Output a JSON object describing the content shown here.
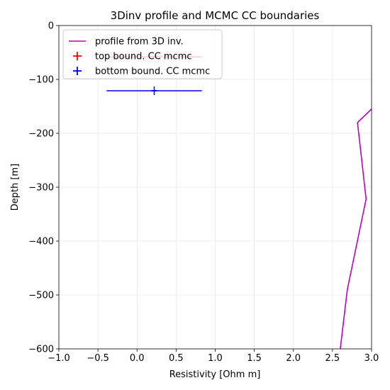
{
  "chart_data": {
    "type": "line",
    "title": "3Dinv profile and MCMC CC boundaries",
    "xlabel": "Resistivity [Ohm m]",
    "ylabel": "Depth [m]",
    "xlim": [
      -1.0,
      3.0
    ],
    "ylim": [
      -600,
      0
    ],
    "x_ticks": [
      -1.0,
      -0.5,
      0.0,
      0.5,
      1.0,
      1.5,
      2.0,
      2.5,
      3.0
    ],
    "x_tick_labels": [
      "−1.0",
      "−0.5",
      "0.0",
      "0.5",
      "1.0",
      "1.5",
      "2.0",
      "2.5",
      "3.0"
    ],
    "y_ticks": [
      0,
      -100,
      -200,
      -300,
      -400,
      -500,
      -600
    ],
    "y_tick_labels": [
      "0",
      "−100",
      "−200",
      "−300",
      "−400",
      "−500",
      "−600"
    ],
    "grid": true,
    "legend_position": "top-left",
    "series": [
      {
        "name": "profile from 3D inv.",
        "kind": "line",
        "color": "#bf00bf",
        "points": [
          [
            3.05,
            -148
          ],
          [
            2.82,
            -180
          ],
          [
            2.93,
            -322
          ],
          [
            2.69,
            -490
          ],
          [
            2.6,
            -600
          ]
        ]
      },
      {
        "name": "top bound. CC mcmc",
        "kind": "errorbar",
        "color": "#ff0000",
        "x": 0.23,
        "y": -58,
        "xerr": 0.6,
        "yerr": 3
      },
      {
        "name": "bottom bound. CC mcmc",
        "kind": "errorbar",
        "color": "#0000ff",
        "x": 0.22,
        "y": -121,
        "xerr": 0.61,
        "yerr": 8
      }
    ]
  }
}
